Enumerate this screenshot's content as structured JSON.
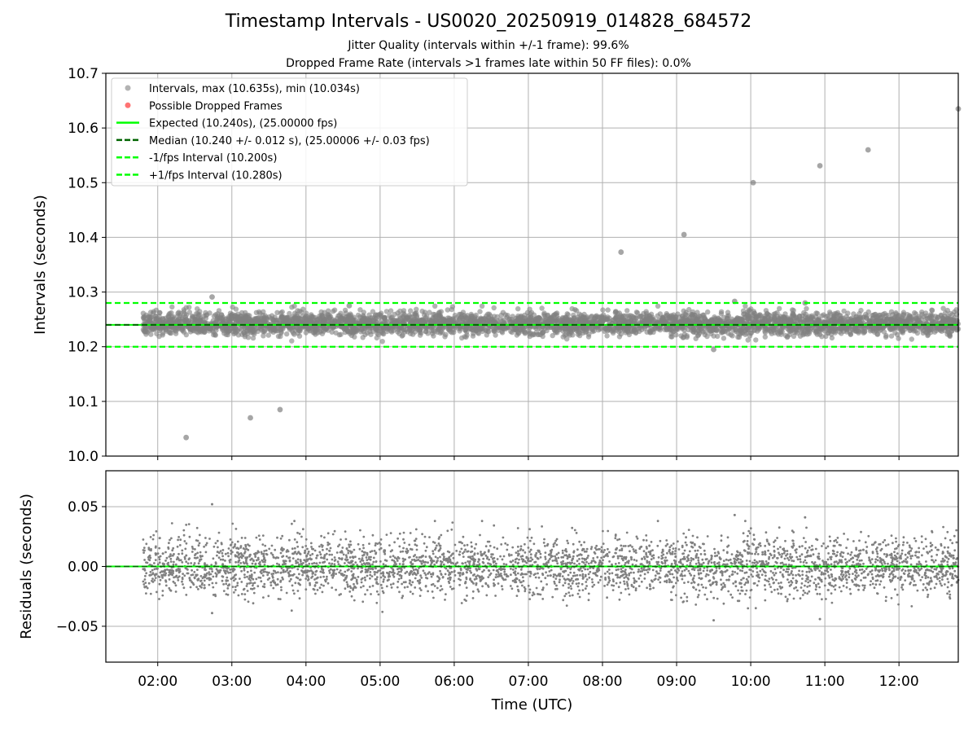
{
  "figure": {
    "title": "Timestamp Intervals - US0020_20250919_014828_684572",
    "subtitle_1": "Jitter Quality (intervals within +/-1 frame): 99.6%",
    "subtitle_2": "Dropped Frame Rate (intervals >1 frames late within 50 FF files): 0.0%"
  },
  "colors": {
    "points": "#808080",
    "expected": "#00ff00",
    "median": "#006400",
    "fps_band": "#00ff00",
    "dropped": "#ff0000",
    "grid": "#b0b0b0"
  },
  "chart_data": [
    {
      "type": "scatter",
      "xlabel": "",
      "ylabel": "Intervals (seconds)",
      "xlim": [
        "01:18",
        "12:48"
      ],
      "ylim": [
        10.0,
        10.7
      ],
      "yticks": [
        "10.0",
        "10.1",
        "10.2",
        "10.3",
        "10.4",
        "10.5",
        "10.6",
        "10.7"
      ],
      "xticks": [
        "02:00",
        "03:00",
        "04:00",
        "05:00",
        "06:00",
        "07:00",
        "08:00",
        "09:00",
        "10:00",
        "11:00",
        "12:00"
      ],
      "grid": true,
      "legend_placement": "top-left",
      "legend": [
        {
          "label": "Intervals, max (10.635s), min (10.034s)",
          "kind": "point-gray"
        },
        {
          "label": "Possible Dropped Frames",
          "kind": "point-red"
        },
        {
          "label": "Expected (10.240s), (25.00000 fps)",
          "kind": "line-solid-green"
        },
        {
          "label": "Median (10.240 +/- 0.012 s), (25.00006 +/- 0.03 fps)",
          "kind": "line-dashed-darkgreen"
        },
        {
          "label": "-1/fps Interval (10.200s)",
          "kind": "line-dashed-green"
        },
        {
          "label": "+1/fps Interval (10.280s)",
          "kind": "line-dashed-green"
        }
      ],
      "reference_lines": {
        "expected": 10.24,
        "median": 10.24,
        "minus_1fps": 10.2,
        "plus_1fps": 10.28
      },
      "time_range": [
        "01:48",
        "12:48"
      ],
      "dense_band": {
        "center": 10.242,
        "std": 0.012
      },
      "outliers": [
        {
          "x": "02:23",
          "y": 10.034
        },
        {
          "x": "03:15",
          "y": 10.07
        },
        {
          "x": "03:39",
          "y": 10.085
        },
        {
          "x": "02:44",
          "y": 10.291
        },
        {
          "x": "04:35",
          "y": 10.275
        },
        {
          "x": "08:15",
          "y": 10.373
        },
        {
          "x": "09:06",
          "y": 10.405
        },
        {
          "x": "09:47",
          "y": 10.283
        },
        {
          "x": "09:30",
          "y": 10.195
        },
        {
          "x": "10:02",
          "y": 10.5
        },
        {
          "x": "10:44",
          "y": 10.28
        },
        {
          "x": "10:56",
          "y": 10.531
        },
        {
          "x": "11:35",
          "y": 10.56
        },
        {
          "x": "12:48",
          "y": 10.635
        }
      ]
    },
    {
      "type": "scatter",
      "xlabel": "Time (UTC)",
      "ylabel": "Residuals (seconds)",
      "xlim": [
        "01:18",
        "12:48"
      ],
      "ylim": [
        -0.08,
        0.08
      ],
      "yticks": [
        "−0.05",
        "0.00",
        "0.05"
      ],
      "ytick_values": [
        -0.05,
        0.0,
        0.05
      ],
      "xticks": [
        "02:00",
        "03:00",
        "04:00",
        "05:00",
        "06:00",
        "07:00",
        "08:00",
        "09:00",
        "10:00",
        "11:00",
        "12:00"
      ],
      "grid": true,
      "zero_line": 0.0,
      "dense_band": {
        "center": 0.0,
        "std": 0.012
      },
      "outliers": [
        {
          "x": "02:44",
          "y": 0.052
        },
        {
          "x": "02:44",
          "y": -0.039
        },
        {
          "x": "09:47",
          "y": 0.043
        },
        {
          "x": "09:30",
          "y": -0.045
        },
        {
          "x": "10:44",
          "y": 0.041
        },
        {
          "x": "10:56",
          "y": -0.044
        }
      ]
    }
  ]
}
